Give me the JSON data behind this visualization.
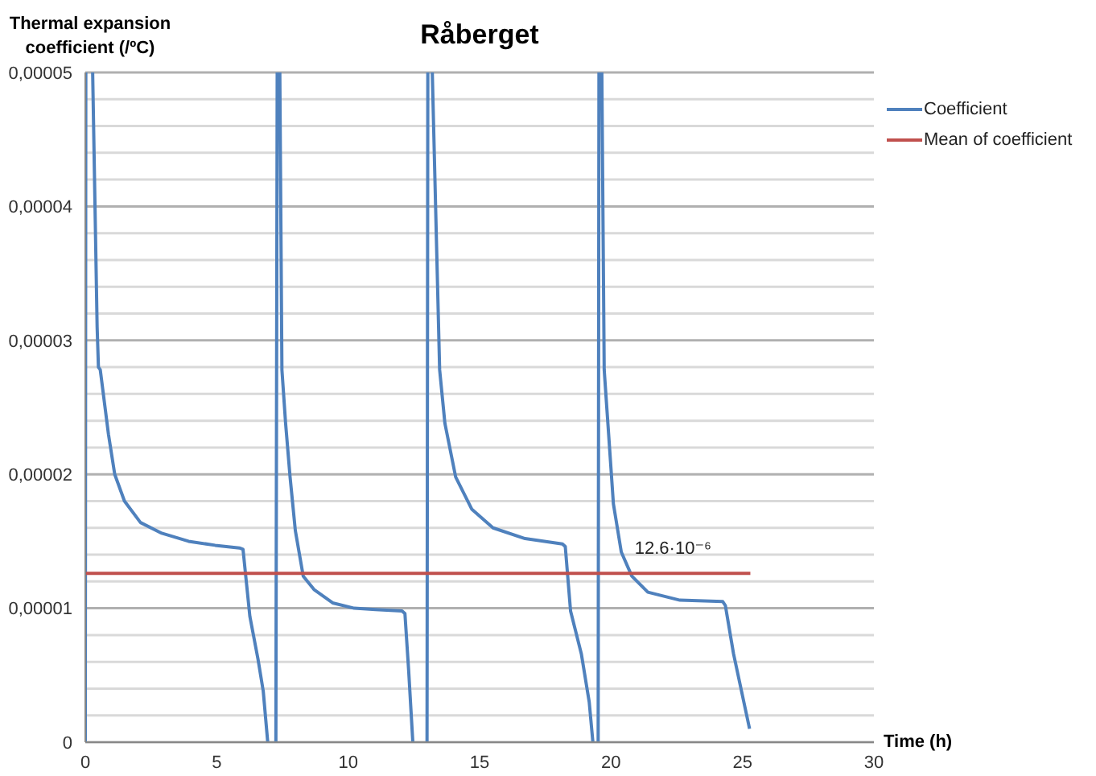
{
  "chart_data": {
    "type": "line",
    "title": "Råberget",
    "xlabel": "Time (h)",
    "ylabel": "Thermal expansion coefficient (/ºC)",
    "xlim": [
      0,
      30
    ],
    "xticks": [
      0,
      5,
      10,
      15,
      20,
      25,
      30
    ],
    "ylim": [
      0,
      5e-05
    ],
    "yticks": [
      {
        "value": 0,
        "label": "0"
      },
      {
        "value": 2e-06,
        "label": null
      },
      {
        "value": 4e-06,
        "label": null
      },
      {
        "value": 6e-06,
        "label": null
      },
      {
        "value": 8e-06,
        "label": null
      },
      {
        "value": 1e-05,
        "label": "0,00001"
      },
      {
        "value": 1.2e-05,
        "label": null
      },
      {
        "value": 1.4e-05,
        "label": null
      },
      {
        "value": 1.6e-05,
        "label": null
      },
      {
        "value": 1.8e-05,
        "label": null
      },
      {
        "value": 2e-05,
        "label": "0,00002"
      },
      {
        "value": 2.2e-05,
        "label": null
      },
      {
        "value": 2.4e-05,
        "label": null
      },
      {
        "value": 2.6e-05,
        "label": null
      },
      {
        "value": 2.8e-05,
        "label": null
      },
      {
        "value": 3e-05,
        "label": "0,00003"
      },
      {
        "value": 3.2e-05,
        "label": null
      },
      {
        "value": 3.4e-05,
        "label": null
      },
      {
        "value": 3.6e-05,
        "label": null
      },
      {
        "value": 3.8e-05,
        "label": null
      },
      {
        "value": 4e-05,
        "label": "0,00004"
      },
      {
        "value": 4.2e-05,
        "label": null
      },
      {
        "value": 4.4e-05,
        "label": null
      },
      {
        "value": 4.6e-05,
        "label": null
      },
      {
        "value": 4.8e-05,
        "label": null
      },
      {
        "value": 5e-05,
        "label": "0,00005"
      }
    ],
    "grid": "y",
    "legend": "top right",
    "series": [
      {
        "name": "Coefficient",
        "color": "#4f81bd",
        "x": [
          0,
          0.02,
          0.15,
          0.28,
          0.45,
          0.5,
          0.57,
          0.88,
          1.12,
          1.49,
          2.1,
          2.91,
          3.93,
          4.94,
          5.86,
          6.0,
          6.26,
          6.57,
          6.77,
          6.94,
          7.1,
          7.25,
          7.3,
          7.35,
          7.4,
          7.48,
          7.62,
          7.79,
          7.99,
          8.29,
          8.7,
          9.41,
          10.23,
          11.04,
          12.05,
          12.16,
          12.3,
          12.46,
          12.7,
          13.0,
          13.03,
          13.1,
          13.2,
          13.48,
          13.68,
          14.09,
          14.7,
          15.51,
          16.73,
          18.15,
          18.26,
          18.46,
          18.87,
          19.17,
          19.31,
          19.4,
          19.51,
          19.54,
          19.6,
          19.65,
          19.74,
          19.88,
          20.09,
          20.39,
          20.79,
          21.4,
          22.62,
          24.25,
          24.35,
          24.66,
          25.27
        ],
        "values": [
          0,
          5e-05,
          null,
          5e-05,
          3.1e-05,
          2.8e-05,
          2.78e-05,
          2.3e-05,
          2e-05,
          1.8e-05,
          1.64e-05,
          1.56e-05,
          1.5e-05,
          1.47e-05,
          1.45e-05,
          1.44e-05,
          9.4e-06,
          6.2e-06,
          3.8e-06,
          0,
          null,
          0,
          5e-05,
          null,
          5e-05,
          2.78e-05,
          2.38e-05,
          1.98e-05,
          1.58e-05,
          1.24e-05,
          1.14e-05,
          1.04e-05,
          1e-05,
          9.9e-06,
          9.8e-06,
          9.6e-06,
          5.4e-06,
          0,
          null,
          0,
          5e-05,
          null,
          5e-05,
          2.78e-05,
          2.38e-05,
          1.98e-05,
          1.74e-05,
          1.6e-05,
          1.52e-05,
          1.48e-05,
          1.46e-05,
          9.8e-06,
          6.6e-06,
          3e-06,
          0,
          null,
          0,
          5e-05,
          null,
          5e-05,
          2.78e-05,
          2.38e-05,
          1.78e-05,
          1.42e-05,
          1.24e-05,
          1.12e-05,
          1.06e-05,
          1.05e-05,
          1.02e-05,
          6.6e-06,
          1e-06
        ]
      },
      {
        "name": "Mean of coefficient",
        "color": "#c0504d",
        "x": [
          0,
          25.3
        ],
        "values": [
          1.26e-05,
          1.26e-05
        ]
      }
    ],
    "annotations": [
      "12.6·10⁻⁶"
    ]
  }
}
